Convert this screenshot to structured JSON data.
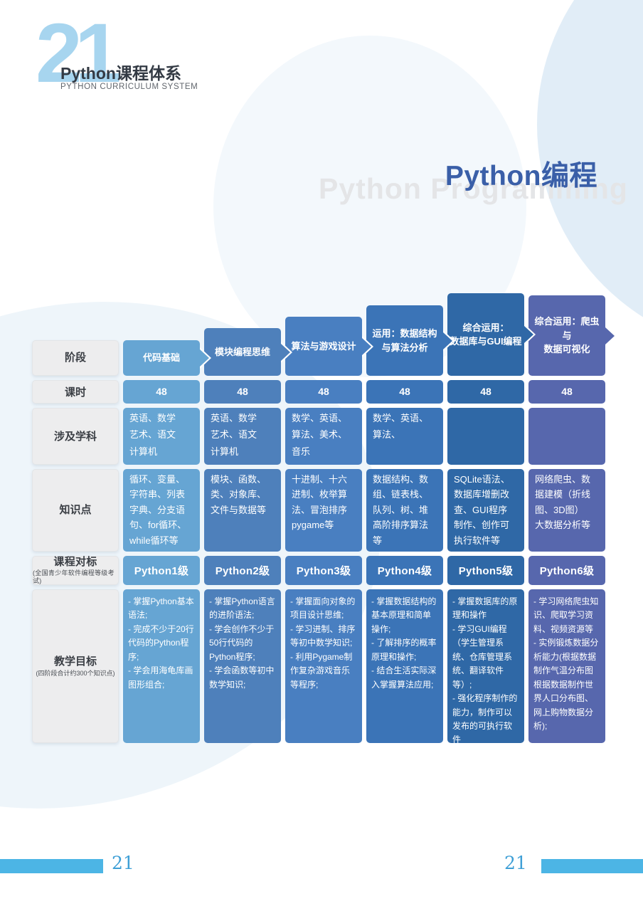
{
  "page_header": {
    "big_number": "21",
    "title": "Python课程体系",
    "subtitle": "PYTHON CURRICULUM SYSTEM"
  },
  "hero": {
    "title": "Python编程",
    "watermark": "Python Programming"
  },
  "colors": {
    "accent_light_blue": "#A7D5EF",
    "hero_blue": "#3A5FA8",
    "footer_bar": "#4CB5E5",
    "page_number": "#3E9FD6",
    "label_bg": "#EDEDEE"
  },
  "table": {
    "rows": {
      "stage": "阶段",
      "hours": "课时",
      "subjects": "涉及学科",
      "knowledge": "知识点",
      "benchmark": "课程对标",
      "benchmark_note": "(全国青少年软件编程等级考试)",
      "goals": "教学目标",
      "goals_note": "(四阶段合计约300个知识点)"
    },
    "columns": [
      {
        "stage": "代码基础",
        "hours": "48",
        "subjects": "英语、数学\n艺术、语文\n计算机",
        "knowledge": "循环、变量、\n字符串、列表\n字典、分支语\n句、for循环、\nwhile循环等",
        "benchmark": "Python1级",
        "goals": "- 掌握Python基本语法;\n- 完成不少于20行代码的Python程序;\n- 学会用海龟库画图形组合;",
        "color": "#66A5D3"
      },
      {
        "stage": "模块编程思维",
        "hours": "48",
        "subjects": "英语、数学\n艺术、语文\n计算机",
        "knowledge": "模块、函数、\n类、对象库、\n文件与数据等",
        "benchmark": "Python2级",
        "goals": "- 掌握Python语言的进阶语法;\n- 学会创作不少于50行代码的Python程序;\n- 学会函数等初中数学知识;",
        "color": "#4E80BB"
      },
      {
        "stage": "算法与游戏设计",
        "hours": "48",
        "subjects": "数学、英语、\n算法、美术、\n音乐",
        "knowledge": "十进制、十六\n进制、枚举算\n法、冒泡排序\npygame等",
        "benchmark": "Python3级",
        "goals": "- 掌握面向对象的项目设计思维;\n- 学习进制、排序等初中数学知识;\n- 利用Pygame制作复杂游戏音乐等程序;",
        "color": "#497FC1"
      },
      {
        "stage": "运用：数据结构\n与算法分析",
        "hours": "48",
        "subjects": "数学、英语、\n算法、",
        "knowledge": "数据结构、数\n组、链表栈、\n队列、树、堆\n高阶排序算法\n等",
        "benchmark": "Python4级",
        "goals": "- 掌握数据结构的基本原理和简单操作;\n- 了解排序的概率原理和操作;\n- 结合生活实际深入掌握算法应用;",
        "color": "#3B74B7"
      },
      {
        "stage": "综合运用：\n数据库与GUI编程",
        "hours": "48",
        "subjects": "",
        "knowledge": "SQLite语法、\n数据库增删改\n查、GUI程序\n制作、创作可\n执行软件等",
        "benchmark": "Python5级",
        "goals": "- 掌握数据库的原理和操作\n- 学习GUI编程（学生管理系统、仓库管理系统、翻译软件等）;\n- 强化程序制作的能力，制作可以发布的可执行软件",
        "color": "#2F68A6"
      },
      {
        "stage": "综合运用：爬虫与\n数据可视化",
        "hours": "48",
        "subjects": "",
        "knowledge": "网络爬虫、数\n据建模（折线\n图、3D图）\n大数据分析等",
        "benchmark": "Python6级",
        "goals": "- 学习网络爬虫知识、爬取学习资料、视频资源等\n- 实例锻炼数据分析能力(根据数据制作气温分布图根据数据制作世界人口分布图、网上购物数据分析);",
        "color": "#5767AD"
      }
    ]
  },
  "footer": {
    "left_page": "21",
    "right_page": "21"
  }
}
